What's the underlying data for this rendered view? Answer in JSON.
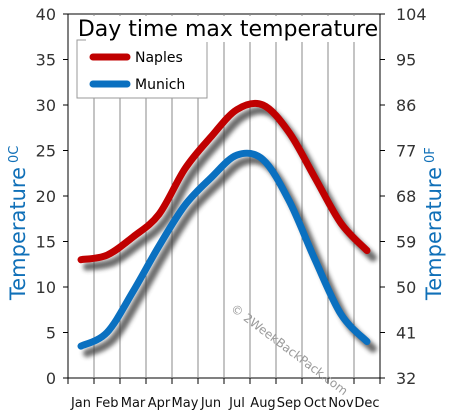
{
  "chart_data": {
    "type": "line",
    "title": "Day time max temperature",
    "categories": [
      "Jan",
      "Feb",
      "Mar",
      "Apr",
      "May",
      "Jun",
      "Jul",
      "Aug",
      "Sep",
      "Oct",
      "Nov",
      "Dec"
    ],
    "series": [
      {
        "name": "Naples",
        "color": "#c00000",
        "values": [
          13,
          13.5,
          15.5,
          18,
          23,
          26.5,
          29.5,
          30,
          27,
          22,
          17,
          14
        ]
      },
      {
        "name": "Munich",
        "color": "#0a70c0",
        "values": [
          3.5,
          5,
          9.5,
          14.5,
          19,
          22,
          24.5,
          24,
          19.5,
          13,
          7,
          4
        ]
      }
    ],
    "ylabel_left": "Temperature",
    "ylabel_left_unit": "0C",
    "ylabel_right": "Temperature",
    "ylabel_right_unit": "0F",
    "ylim": [
      0,
      40
    ],
    "y_ticks_left": [
      "0",
      "5",
      "10",
      "15",
      "20",
      "25",
      "30",
      "35",
      "40"
    ],
    "y_ticks_right": [
      "32",
      "41",
      "50",
      "59",
      "68",
      "77",
      "86",
      "95",
      "104"
    ],
    "grid": "vertical",
    "legend_position": "top-left",
    "watermark": "© 2WeekBackPack.com"
  }
}
